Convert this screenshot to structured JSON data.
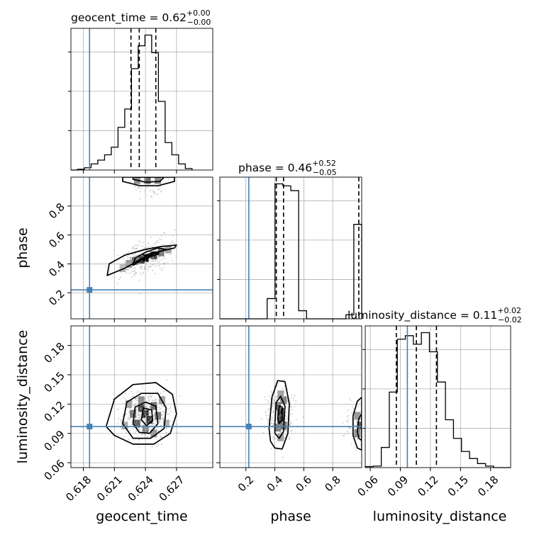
{
  "chart_data": {
    "type": "corner",
    "parameters": [
      "geocent_time",
      "phase",
      "luminosity_distance"
    ],
    "truths": {
      "geocent_time": 0.6186,
      "phase": 0.22,
      "luminosity_distance": 0.097
    },
    "colors": {
      "truth": "#4682b4",
      "line": "#000000",
      "grid": "#b0b0b0"
    },
    "grid": true,
    "titles": [
      {
        "param": "geocent_time",
        "text": "geocent_time = 0.62",
        "sup": "+0.00",
        "sub": "−0.00"
      },
      {
        "param": "phase",
        "text": "phase = 0.46",
        "sup": "+0.52",
        "sub": "−0.05"
      },
      {
        "param": "luminosity_distance",
        "text": "luminosity_distance = 0.11",
        "sup": "+0.02",
        "sub": "−0.02"
      }
    ],
    "axis_labels": {
      "x": [
        "geocent_time",
        "phase",
        "luminosity_distance"
      ],
      "y": [
        "phase",
        "luminosity_distance"
      ]
    },
    "ranges": {
      "geocent_time": [
        0.6168,
        0.6305
      ],
      "phase": [
        0.02,
        1.0
      ],
      "luminosity_distance": [
        0.055,
        0.2
      ]
    },
    "ticks": {
      "geocent_time": [
        "0.618",
        "0.621",
        "0.624",
        "0.627"
      ],
      "phase_x": [
        "0.2",
        "0.4",
        "0.6",
        "0.8"
      ],
      "phase_y": [
        "0.2",
        "0.4",
        "0.6",
        "0.8"
      ],
      "luminosity_distance": [
        "0.06",
        "0.09",
        "0.12",
        "0.15",
        "0.18"
      ]
    },
    "quantiles": {
      "geocent_time": [
        0.6226,
        0.6234,
        0.625
      ],
      "phase": [
        0.41,
        0.46,
        0.98
      ],
      "luminosity_distance": [
        0.086,
        0.106,
        0.126
      ]
    },
    "histograms": {
      "geocent_time": {
        "edges": [
          0.6168,
          0.61745,
          0.6181,
          0.61875,
          0.6194,
          0.62005,
          0.6207,
          0.62135,
          0.622,
          0.62265,
          0.6233,
          0.62395,
          0.6246,
          0.62525,
          0.6259,
          0.62655,
          0.6272,
          0.62785,
          0.6285
        ],
        "counts": [
          0,
          1,
          3,
          8,
          13,
          20,
          30,
          56,
          80,
          133,
          163,
          177,
          154,
          90,
          36,
          20,
          8,
          2
        ]
      },
      "phase": {
        "edges": [
          0.02,
          0.0744,
          0.1289,
          0.1833,
          0.2378,
          0.2922,
          0.3467,
          0.4011,
          0.4556,
          0.51,
          0.5644,
          0.6189,
          0.6733,
          0.7278,
          0.7822,
          0.8367,
          0.8911,
          0.9456,
          1.0
        ],
        "counts": [
          0,
          0,
          0,
          0,
          0,
          0,
          30,
          200,
          197,
          190,
          12,
          0,
          0,
          0,
          0,
          0,
          6,
          140
        ]
      },
      "luminosity_distance": {
        "edges": [
          0.055,
          0.063,
          0.071,
          0.079,
          0.087,
          0.095,
          0.103,
          0.111,
          0.119,
          0.127,
          0.135,
          0.143,
          0.151,
          0.159,
          0.167,
          0.175,
          0.183,
          0.191,
          0.2
        ],
        "counts": [
          2,
          3,
          40,
          150,
          255,
          262,
          245,
          268,
          230,
          170,
          95,
          58,
          32,
          18,
          8,
          3,
          0,
          0
        ]
      }
    },
    "contours": {
      "geocent_time_vs_phase": [
        {
          "level": 1,
          "points": [
            [
              0.6203,
              0.32
            ],
            [
              0.622,
              0.37
            ],
            [
              0.6235,
              0.43
            ],
            [
              0.625,
              0.48
            ],
            [
              0.6268,
              0.51
            ],
            [
              0.627,
              0.53
            ],
            [
              0.6255,
              0.52
            ],
            [
              0.624,
              0.5
            ],
            [
              0.622,
              0.46
            ],
            [
              0.6205,
              0.4
            ]
          ]
        },
        {
          "level": 2,
          "points": [
            [
              0.6228,
              0.39
            ],
            [
              0.6237,
              0.43
            ],
            [
              0.6248,
              0.47
            ],
            [
              0.626,
              0.5
            ],
            [
              0.6252,
              0.51
            ],
            [
              0.624,
              0.48
            ],
            [
              0.623,
              0.44
            ]
          ]
        },
        {
          "level": 3,
          "points": [
            [
              0.6238,
              0.42
            ],
            [
              0.6245,
              0.45
            ],
            [
              0.6253,
              0.47
            ],
            [
              0.6248,
              0.48
            ],
            [
              0.624,
              0.46
            ]
          ]
        },
        {
          "level": 1,
          "points": [
            [
              0.6218,
              0.97
            ],
            [
              0.6235,
              0.94
            ],
            [
              0.6252,
              0.94
            ],
            [
              0.6268,
              0.97
            ],
            [
              0.6268,
              1.0
            ],
            [
              0.6218,
              1.0
            ]
          ]
        },
        {
          "level": 2,
          "points": [
            [
              0.6228,
              0.985
            ],
            [
              0.624,
              0.965
            ],
            [
              0.6254,
              0.97
            ],
            [
              0.6258,
              1.0
            ],
            [
              0.6228,
              1.0
            ]
          ]
        }
      ],
      "geocent_time_vs_luminosity_distance": [
        {
          "level": 1,
          "points": [
            [
              0.6202,
              0.097
            ],
            [
              0.621,
              0.125
            ],
            [
              0.6228,
              0.14
            ],
            [
              0.625,
              0.142
            ],
            [
              0.6266,
              0.13
            ],
            [
              0.627,
              0.11
            ],
            [
              0.6264,
              0.09
            ],
            [
              0.6248,
              0.079
            ],
            [
              0.6228,
              0.079
            ],
            [
              0.621,
              0.088
            ]
          ]
        },
        {
          "level": 2,
          "points": [
            [
              0.6218,
              0.1
            ],
            [
              0.6222,
              0.122
            ],
            [
              0.6236,
              0.131
            ],
            [
              0.6252,
              0.131
            ],
            [
              0.626,
              0.116
            ],
            [
              0.6258,
              0.095
            ],
            [
              0.6245,
              0.085
            ],
            [
              0.6228,
              0.085
            ]
          ]
        },
        {
          "level": 3,
          "points": [
            [
              0.6228,
              0.1
            ],
            [
              0.623,
              0.117
            ],
            [
              0.624,
              0.122
            ],
            [
              0.625,
              0.118
            ],
            [
              0.6252,
              0.1
            ],
            [
              0.6244,
              0.09
            ],
            [
              0.6234,
              0.091
            ]
          ]
        },
        {
          "level": 4,
          "points": [
            [
              0.6236,
              0.104
            ],
            [
              0.6238,
              0.116
            ],
            [
              0.6246,
              0.114
            ],
            [
              0.6247,
              0.103
            ],
            [
              0.6241,
              0.098
            ]
          ]
        }
      ],
      "phase_vs_luminosity_distance": [
        {
          "level": 1,
          "points": [
            [
              0.36,
              0.095
            ],
            [
              0.38,
              0.127
            ],
            [
              0.42,
              0.144
            ],
            [
              0.47,
              0.143
            ],
            [
              0.5,
              0.12
            ],
            [
              0.49,
              0.09
            ],
            [
              0.45,
              0.074
            ],
            [
              0.4,
              0.075
            ],
            [
              0.37,
              0.082
            ]
          ]
        },
        {
          "level": 2,
          "points": [
            [
              0.4,
              0.1
            ],
            [
              0.41,
              0.122
            ],
            [
              0.44,
              0.128
            ],
            [
              0.47,
              0.118
            ],
            [
              0.46,
              0.092
            ],
            [
              0.43,
              0.085
            ],
            [
              0.4,
              0.09
            ]
          ]
        },
        {
          "level": 3,
          "points": [
            [
              0.42,
              0.105
            ],
            [
              0.43,
              0.118
            ],
            [
              0.45,
              0.117
            ],
            [
              0.45,
              0.104
            ],
            [
              0.43,
              0.1
            ]
          ]
        },
        {
          "level": 1,
          "points": [
            [
              1.0,
              0.127
            ],
            [
              0.97,
              0.123
            ],
            [
              0.94,
              0.108
            ],
            [
              0.94,
              0.088
            ],
            [
              0.97,
              0.075
            ],
            [
              1.0,
              0.073
            ]
          ]
        },
        {
          "level": 2,
          "points": [
            [
              1.0,
              0.11
            ],
            [
              0.98,
              0.105
            ],
            [
              0.97,
              0.092
            ],
            [
              0.98,
              0.085
            ],
            [
              1.0,
              0.083
            ]
          ]
        }
      ]
    },
    "density_cells": {
      "geocent_time_vs_phase": [
        [
          0.624,
          0.44,
          0.9
        ],
        [
          0.6236,
          0.43,
          0.75
        ],
        [
          0.6248,
          0.46,
          0.7
        ],
        [
          0.623,
          0.42,
          0.55
        ],
        [
          0.6255,
          0.48,
          0.5
        ],
        [
          0.6224,
          0.4,
          0.35
        ],
        [
          0.6262,
          0.5,
          0.3
        ],
        [
          0.6218,
          0.37,
          0.2
        ],
        [
          0.6242,
          0.98,
          0.55
        ],
        [
          0.6232,
          0.98,
          0.4
        ],
        [
          0.6252,
          0.98,
          0.4
        ]
      ],
      "geocent_time_vs_luminosity_distance": [
        [
          0.624,
          0.11,
          0.9
        ],
        [
          0.6244,
          0.104,
          0.8
        ],
        [
          0.6236,
          0.116,
          0.7
        ],
        [
          0.6232,
          0.1,
          0.6
        ],
        [
          0.6248,
          0.118,
          0.55
        ],
        [
          0.6228,
          0.11,
          0.5
        ],
        [
          0.6252,
          0.108,
          0.5
        ],
        [
          0.624,
          0.094,
          0.45
        ],
        [
          0.6236,
          0.124,
          0.4
        ],
        [
          0.6248,
          0.09,
          0.35
        ],
        [
          0.6224,
          0.12,
          0.3
        ],
        [
          0.6256,
          0.124,
          0.3
        ],
        [
          0.622,
          0.098,
          0.25
        ],
        [
          0.626,
          0.1,
          0.25
        ]
      ],
      "phase_vs_luminosity_distance": [
        [
          0.44,
          0.112,
          0.9
        ],
        [
          0.44,
          0.104,
          0.75
        ],
        [
          0.42,
          0.118,
          0.6
        ],
        [
          0.46,
          0.098,
          0.55
        ],
        [
          0.42,
          0.096,
          0.45
        ],
        [
          0.46,
          0.124,
          0.45
        ],
        [
          0.44,
          0.13,
          0.3
        ],
        [
          0.44,
          0.086,
          0.3
        ],
        [
          0.99,
          0.098,
          0.6
        ],
        [
          0.97,
          0.09,
          0.4
        ],
        [
          0.97,
          0.108,
          0.35
        ]
      ]
    }
  }
}
